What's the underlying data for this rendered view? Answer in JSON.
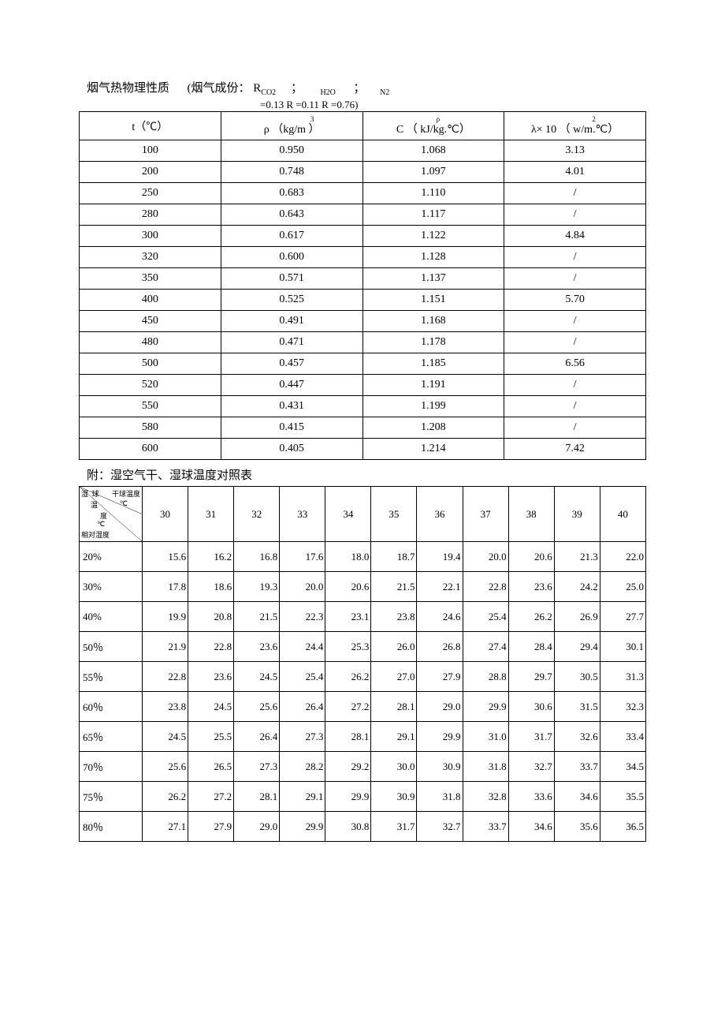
{
  "title": {
    "main": "烟气热物理性质",
    "paren_prefix": "(烟气成份：",
    "r1": "R",
    "r1_sub": "CO2",
    "semi1": "；",
    "r2_sub": "H2O",
    "semi2": "；",
    "r3_sub": "N2",
    "line2": "=0.13    R    =0.11        R      =0.76)"
  },
  "table1": {
    "headers": {
      "col1": "t（℃）",
      "col2_sym": "ρ",
      "col2_unit": "（kg/m  ）",
      "col2_sup": "3",
      "col3_sym": "C",
      "col3_sup_sym": "ρ",
      "col3_unit": "（ kJ/kg.℃）",
      "col4_sym": "λ× 10",
      "col4_sup": "2",
      "col4_unit": "（ w/m.℃）"
    },
    "rows": [
      [
        "100",
        "0.950",
        "1.068",
        "3.13"
      ],
      [
        "200",
        "0.748",
        "1.097",
        "4.01"
      ],
      [
        "250",
        "0.683",
        "1.110",
        "/"
      ],
      [
        "280",
        "0.643",
        "1.117",
        "/"
      ],
      [
        "300",
        "0.617",
        "1.122",
        "4.84"
      ],
      [
        "320",
        "0.600",
        "1.128",
        "/"
      ],
      [
        "350",
        "0.571",
        "1.137",
        "/"
      ],
      [
        "400",
        "0.525",
        "1.151",
        "5.70"
      ],
      [
        "450",
        "0.491",
        "1.168",
        "/"
      ],
      [
        "480",
        "0.471",
        "1.178",
        "/"
      ],
      [
        "500",
        "0.457",
        "1.185",
        "6.56"
      ],
      [
        "520",
        "0.447",
        "1.191",
        "/"
      ],
      [
        "550",
        "0.431",
        "1.199",
        "/"
      ],
      [
        "580",
        "0.415",
        "1.208",
        "/"
      ],
      [
        "600",
        "0.405",
        "1.214",
        "7.42"
      ]
    ]
  },
  "subtitle": "附：湿空气干、湿球温度对照表",
  "table2": {
    "diag": {
      "top": "干球温度",
      "top_unit": "℃",
      "mid1": "湿",
      "mid1b": "球",
      "mid2": "温",
      "mid3": "度",
      "mid_unit": "℃",
      "bottom": "相对湿度"
    },
    "col_headers": [
      "30",
      "31",
      "32",
      "33",
      "34",
      "35",
      "36",
      "37",
      "38",
      "39",
      "40"
    ],
    "rows": [
      {
        "label": "20%",
        "vals": [
          "15.6",
          "16.2",
          "16.8",
          "17.6",
          "18.0",
          "18.7",
          "19.4",
          "20.0",
          "20.6",
          "21.3",
          "22.0"
        ]
      },
      {
        "label": "30%",
        "vals": [
          "17.8",
          "18.6",
          "19.3",
          "20.0",
          "20.6",
          "21.5",
          "22.1",
          "22.8",
          "23.6",
          "24.2",
          "25.0"
        ]
      },
      {
        "label": "40%",
        "vals": [
          "19.9",
          "20.8",
          "21.5",
          "22.3",
          "23.1",
          "23.8",
          "24.6",
          "25.4",
          "26.2",
          "26.9",
          "27.7"
        ]
      },
      {
        "label": "50％",
        "vals": [
          "21.9",
          "22.8",
          "23.6",
          "24.4",
          "25.3",
          "26.0",
          "26.8",
          "27.4",
          "28.4",
          "29.4",
          "30.1"
        ]
      },
      {
        "label": "55％",
        "vals": [
          "22.8",
          "23.6",
          "24.5",
          "25.4",
          "26.2",
          "27.0",
          "27.9",
          "28.8",
          "29.7",
          "30.5",
          "31.3"
        ]
      },
      {
        "label": "60％",
        "vals": [
          "23.8",
          "24.5",
          "25.6",
          "26.4",
          "27.2",
          "28.1",
          "29.0",
          "29.9",
          "30.6",
          "31.5",
          "32.3"
        ]
      },
      {
        "label": "65％",
        "vals": [
          "24.5",
          "25.5",
          "26.4",
          "27.3",
          "28.1",
          "29.1",
          "29.9",
          "31.0",
          "31.7",
          "32.6",
          "33.4"
        ]
      },
      {
        "label": "70％",
        "vals": [
          "25.6",
          "26.5",
          "27.3",
          "28.2",
          "29.2",
          "30.0",
          "30.9",
          "31.8",
          "32.7",
          "33.7",
          "34.5"
        ]
      },
      {
        "label": "75％",
        "vals": [
          "26.2",
          "27.2",
          "28.1",
          "29.1",
          "29.9",
          "30.9",
          "31.8",
          "32.8",
          "33.6",
          "34.6",
          "35.5"
        ]
      },
      {
        "label": "80％",
        "vals": [
          "27.1",
          "27.9",
          "29.0",
          "29.9",
          "30.8",
          "31.7",
          "32.7",
          "33.7",
          "34.6",
          "35.6",
          "36.5"
        ]
      }
    ]
  }
}
